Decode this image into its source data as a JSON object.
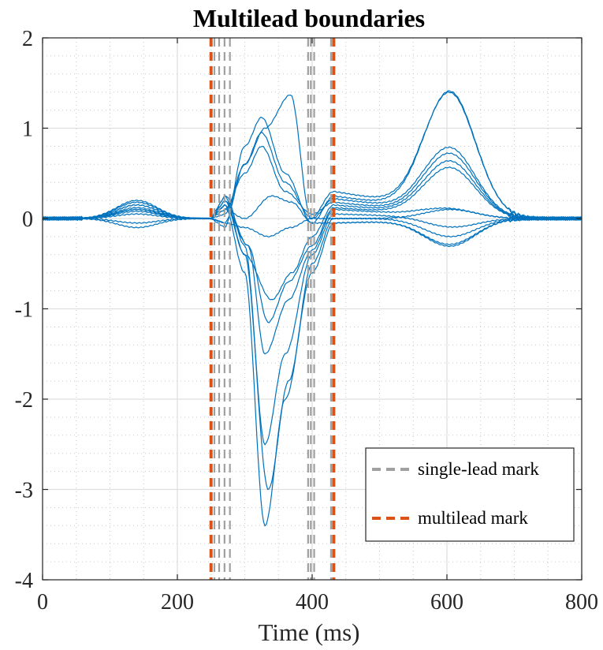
{
  "chart_data": {
    "type": "line",
    "title": "Multilead boundaries",
    "xlabel": "Time (ms)",
    "ylabel": "",
    "xlim": [
      0,
      800
    ],
    "ylim": [
      -4,
      2
    ],
    "xticks": [
      0,
      200,
      400,
      600,
      800
    ],
    "xtick_labels": [
      "0",
      "200",
      "400",
      "600",
      "800"
    ],
    "yticks": [
      2,
      1,
      0,
      -1,
      -2,
      -3,
      -4
    ],
    "ytick_labels": [
      "2",
      "1",
      "0",
      "-1",
      "-2",
      "-3",
      "-4"
    ],
    "grid": true,
    "minor_grid": true,
    "legend_position": "bottom-right",
    "colors": {
      "signal": "#0072BD",
      "single_lead": "#A0A0A0",
      "multilead": "#D95319",
      "grid_major": "#DFDFDF",
      "grid_minor": "#C8C8C8",
      "axis": "#262626"
    },
    "legend": [
      {
        "key": "single_lead",
        "label": "single-lead mark"
      },
      {
        "key": "multilead",
        "label": "multilead mark"
      }
    ],
    "single_lead_marks_ms": [
      255,
      262,
      270,
      278,
      394,
      398,
      403,
      428
    ],
    "multilead_marks_ms": [
      250,
      432
    ],
    "leads": [
      {
        "p": 0.2,
        "q": 0.15,
        "qrs": [
          [
            270,
            0.15
          ],
          [
            300,
            -0.6
          ],
          [
            330,
            -3.4
          ],
          [
            360,
            -2.0
          ],
          [
            400,
            -0.6
          ],
          [
            432,
            -0.05
          ]
        ],
        "st": -0.05,
        "t": -0.28
      },
      {
        "p": 0.15,
        "q": 0.2,
        "qrs": [
          [
            270,
            0.2
          ],
          [
            300,
            -0.4
          ],
          [
            335,
            -3.0
          ],
          [
            365,
            -1.8
          ],
          [
            400,
            -0.5
          ],
          [
            432,
            0.0
          ]
        ],
        "st": 0.0,
        "t": -0.2
      },
      {
        "p": 0.1,
        "q": 0.25,
        "qrs": [
          [
            272,
            0.25
          ],
          [
            300,
            -0.3
          ],
          [
            330,
            -2.5
          ],
          [
            360,
            -1.5
          ],
          [
            400,
            -0.4
          ],
          [
            432,
            0.05
          ]
        ],
        "st": 0.05,
        "t": -0.1
      },
      {
        "p": 0.12,
        "q": 0.2,
        "qrs": [
          [
            270,
            0.2
          ],
          [
            305,
            -0.3
          ],
          [
            330,
            -1.5
          ],
          [
            365,
            -0.9
          ],
          [
            400,
            -0.35
          ],
          [
            432,
            0.1
          ]
        ],
        "st": 0.1,
        "t": 0.1
      },
      {
        "p": -0.05,
        "q": 0.15,
        "qrs": [
          [
            270,
            0.15
          ],
          [
            305,
            -0.3
          ],
          [
            335,
            -1.15
          ],
          [
            365,
            -0.7
          ],
          [
            400,
            -0.3
          ],
          [
            432,
            0.12
          ]
        ],
        "st": 0.12,
        "t": 0.55
      },
      {
        "p": 0.08,
        "q": 0.25,
        "qrs": [
          [
            270,
            0.25
          ],
          [
            300,
            -0.4
          ],
          [
            340,
            -0.9
          ],
          [
            370,
            -0.6
          ],
          [
            400,
            -0.2
          ],
          [
            432,
            0.15
          ]
        ],
        "st": 0.15,
        "t": 0.62
      },
      {
        "p": 0.05,
        "q": 0.1,
        "qrs": [
          [
            270,
            0.1
          ],
          [
            300,
            0.5
          ],
          [
            325,
            0.8
          ],
          [
            360,
            0.3
          ],
          [
            400,
            0.05
          ],
          [
            432,
            0.18
          ]
        ],
        "st": 0.18,
        "t": 0.7
      },
      {
        "p": 0.1,
        "q": 0.05,
        "qrs": [
          [
            270,
            0.05
          ],
          [
            300,
            0.6
          ],
          [
            325,
            0.95
          ],
          [
            360,
            0.4
          ],
          [
            400,
            0.0
          ],
          [
            432,
            0.22
          ]
        ],
        "st": 0.22,
        "t": 0.76
      },
      {
        "p": 0.15,
        "q": -0.1,
        "qrs": [
          [
            270,
            -0.1
          ],
          [
            300,
            0.8
          ],
          [
            325,
            1.12
          ],
          [
            360,
            0.5
          ],
          [
            400,
            -0.05
          ],
          [
            432,
            0.25
          ]
        ],
        "st": 0.25,
        "t": 1.38
      },
      {
        "p": 0.18,
        "q": -0.05,
        "qrs": [
          [
            270,
            -0.05
          ],
          [
            300,
            0.6
          ],
          [
            330,
            1.0
          ],
          [
            368,
            1.37
          ],
          [
            398,
            0.0
          ],
          [
            432,
            0.3
          ]
        ],
        "st": 0.3,
        "t": 1.36
      },
      {
        "p": -0.1,
        "q": 0.1,
        "qrs": [
          [
            270,
            0.1
          ],
          [
            300,
            0.0
          ],
          [
            340,
            0.25
          ],
          [
            370,
            0.18
          ],
          [
            400,
            -0.05
          ],
          [
            432,
            -0.05
          ]
        ],
        "st": -0.05,
        "t": -0.3
      },
      {
        "p": 0.1,
        "q": -0.05,
        "qrs": [
          [
            270,
            -0.05
          ],
          [
            300,
            -0.1
          ],
          [
            335,
            -0.2
          ],
          [
            368,
            -0.1
          ],
          [
            400,
            0.0
          ],
          [
            432,
            0.0
          ]
        ],
        "st": 0.0,
        "t": 0.1
      }
    ]
  }
}
